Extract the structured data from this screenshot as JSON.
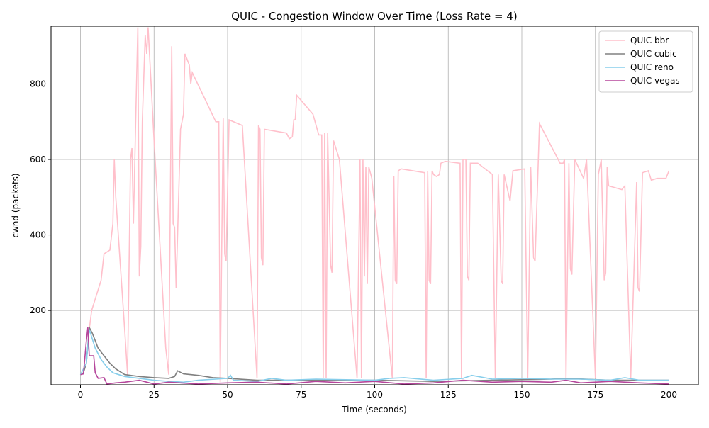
{
  "chart_data": {
    "type": "line",
    "title": "QUIC - Congestion Window Over Time (Loss Rate = 4)",
    "x_label": "Time (seconds)",
    "y_label": "cwnd (packets)",
    "xlim": [
      -10,
      210
    ],
    "xticks": [
      0,
      25,
      50,
      75,
      100,
      125,
      150,
      175,
      200
    ],
    "ylim": [
      3,
      953
    ],
    "yticks": [
      200,
      400,
      600,
      800
    ],
    "grid": true,
    "legend": "upper right",
    "series": [
      {
        "name": "QUIC bbr",
        "color": "#ffc0cb",
        "x": [
          3,
          3.8,
          7,
          8,
          10,
          11,
          11.5,
          12,
          15,
          16,
          17,
          17.5,
          18,
          19,
          19.5,
          20,
          20.5,
          21,
          22,
          22.5,
          23,
          25,
          29,
          30,
          31,
          31.5,
          32,
          32.5,
          34,
          35,
          35.5,
          36,
          37,
          37.5,
          38,
          46,
          47,
          47.5,
          48.5,
          49,
          49.5,
          50.5,
          55,
          60,
          60.5,
          61,
          61.5,
          62,
          62.5,
          70,
          71,
          72,
          72.5,
          73,
          73.5,
          79,
          81,
          82,
          82.5,
          83,
          83.5,
          84,
          85,
          85.5,
          86,
          88,
          94,
          95,
          95.5,
          96,
          96.5,
          97,
          97.5,
          98,
          99,
          106,
          106.5,
          107,
          107.5,
          108,
          109,
          117,
          117.5,
          118,
          118.5,
          119,
          119.5,
          120,
          121,
          122,
          122.5,
          124,
          129,
          129.5,
          130,
          131,
          131.5,
          132,
          132.5,
          135,
          140,
          141,
          142,
          143,
          143.5,
          144,
          146,
          147,
          151,
          152,
          153,
          154,
          154.5,
          156,
          163,
          164,
          164.5,
          165,
          166,
          166.5,
          167,
          168,
          171,
          172,
          175,
          176,
          177,
          178,
          178.5,
          179,
          179.5,
          184,
          185,
          187,
          189,
          189.5,
          190,
          191,
          193,
          194,
          196,
          199,
          200
        ],
        "values": [
          150,
          200,
          280,
          350,
          360,
          430,
          600,
          500,
          150,
          30,
          600,
          630,
          430,
          780,
          950,
          290,
          370,
          700,
          930,
          880,
          950,
          650,
          100,
          30,
          900,
          430,
          420,
          260,
          680,
          720,
          880,
          870,
          850,
          800,
          830,
          700,
          700,
          10,
          710,
          350,
          330,
          705,
          690,
          20,
          690,
          680,
          340,
          320,
          680,
          670,
          655,
          660,
          705,
          705,
          770,
          720,
          665,
          665,
          20,
          670,
          20,
          670,
          320,
          300,
          650,
          600,
          20,
          600,
          20,
          600,
          290,
          580,
          270,
          580,
          550,
          20,
          555,
          280,
          270,
          570,
          575,
          565,
          20,
          570,
          280,
          270,
          570,
          560,
          555,
          560,
          590,
          595,
          590,
          20,
          600,
          600,
          290,
          280,
          590,
          590,
          560,
          20,
          560,
          280,
          270,
          560,
          490,
          570,
          575,
          20,
          580,
          340,
          330,
          695,
          590,
          590,
          600,
          20,
          590,
          310,
          295,
          600,
          550,
          600,
          20,
          560,
          600,
          280,
          300,
          580,
          530,
          520,
          530,
          20,
          540,
          260,
          250,
          565,
          570,
          545,
          550,
          550,
          570
        ]
      },
      {
        "name": "QUIC cubic",
        "color": "#808080",
        "x": [
          0,
          1,
          2,
          3,
          4,
          5,
          6,
          7,
          8,
          10,
          12,
          15,
          20,
          25,
          30,
          32,
          33,
          35,
          40,
          45,
          50,
          60,
          80,
          100,
          120,
          140,
          160,
          165,
          180,
          200
        ],
        "values": [
          30,
          35,
          60,
          155,
          140,
          120,
          100,
          90,
          80,
          60,
          45,
          30,
          25,
          22,
          20,
          25,
          40,
          32,
          28,
          22,
          20,
          15,
          15,
          15,
          12,
          15,
          18,
          20,
          15,
          15
        ]
      },
      {
        "name": "QUIC reno",
        "color": "#87ceeb",
        "x": [
          0,
          2,
          3,
          5,
          7,
          9,
          11,
          15,
          20,
          25,
          30,
          35,
          40,
          50,
          51,
          52,
          60,
          65,
          70,
          80,
          100,
          105,
          110,
          120,
          130,
          133,
          140,
          150,
          160,
          170,
          180,
          185,
          190,
          200
        ],
        "values": [
          30,
          60,
          150,
          100,
          70,
          50,
          35,
          25,
          20,
          15,
          12,
          10,
          15,
          20,
          28,
          15,
          12,
          20,
          15,
          18,
          15,
          20,
          22,
          15,
          20,
          28,
          18,
          20,
          18,
          18,
          15,
          22,
          15,
          15
        ]
      },
      {
        "name": "QUIC vegas",
        "color": "#b5469b",
        "x": [
          0,
          1,
          2,
          2.5,
          3,
          4.5,
          5,
          6,
          8,
          9,
          12,
          15,
          20,
          25,
          30,
          40,
          50,
          60,
          70,
          80,
          90,
          100,
          110,
          120,
          130,
          140,
          150,
          160,
          165,
          170,
          180,
          190,
          200
        ],
        "values": [
          30,
          32,
          120,
          155,
          80,
          80,
          35,
          20,
          22,
          5,
          8,
          10,
          15,
          5,
          10,
          5,
          8,
          10,
          5,
          12,
          8,
          12,
          5,
          8,
          15,
          10,
          12,
          10,
          15,
          8,
          12,
          8,
          5
        ]
      }
    ]
  }
}
